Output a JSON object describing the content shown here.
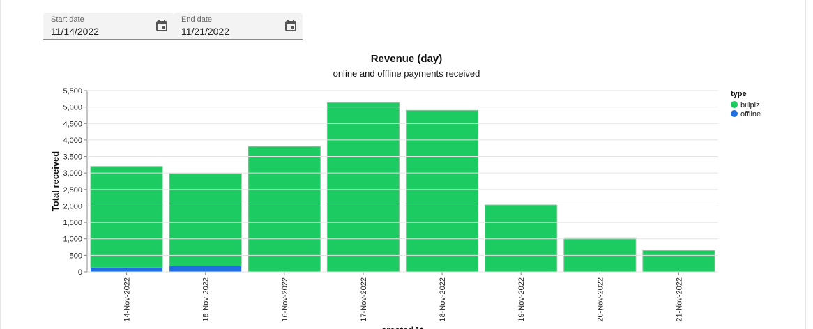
{
  "filters": {
    "start": {
      "label": "Start date",
      "value": "11/14/2022",
      "icon": "calendar-icon"
    },
    "end": {
      "label": "End date",
      "value": "11/21/2022",
      "icon": "calendar-icon"
    }
  },
  "chart_data": {
    "type": "bar",
    "stacked": true,
    "title": "Revenue (day)",
    "subtitle": "online and offline payments received",
    "xlabel": "createdAt",
    "ylabel": "Total received",
    "ylim": [
      0,
      5500
    ],
    "yticks": [
      "0",
      "500",
      "1,000",
      "1,500",
      "2,000",
      "2,500",
      "3,000",
      "3,500",
      "4,000",
      "4,500",
      "5,000",
      "5,500"
    ],
    "ytick_values": [
      0,
      500,
      1000,
      1500,
      2000,
      2500,
      3000,
      3500,
      4000,
      4500,
      5000,
      5500
    ],
    "grid": true,
    "categories": [
      "14-Nov-2022",
      "15-Nov-2022",
      "16-Nov-2022",
      "17-Nov-2022",
      "18-Nov-2022",
      "19-Nov-2022",
      "20-Nov-2022",
      "21-Nov-2022"
    ],
    "legend": {
      "title": "type",
      "position": "right"
    },
    "series": [
      {
        "name": "offline",
        "color": "#1f6fde",
        "values": [
          125,
          175,
          0,
          0,
          0,
          0,
          0,
          0
        ]
      },
      {
        "name": "billplz",
        "color": "#1ccb62",
        "values": [
          3075,
          2805,
          3800,
          5130,
          4900,
          2030,
          1030,
          645
        ]
      }
    ]
  }
}
